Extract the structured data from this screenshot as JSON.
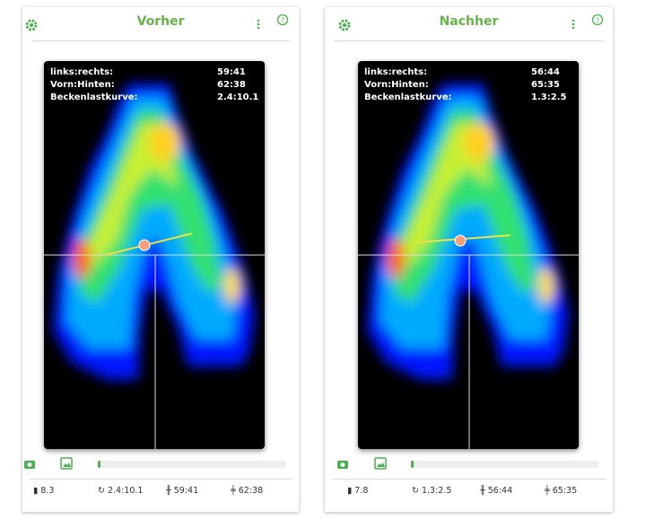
{
  "panels": [
    {
      "title": "Vorher",
      "stats": [
        {
          "label": "links:rechts:",
          "value": "59:41"
        },
        {
          "label": "Vorn:Hinten:",
          "value": "62:38"
        },
        {
          "label": "Beckenlastkurve:",
          "value": "2.4:10.1"
        }
      ],
      "footer": [
        "8.3",
        "2.4:10.1",
        "59:41",
        "62:38"
      ]
    },
    {
      "title": "Nachher",
      "stats": [
        {
          "label": "links:rechts:",
          "value": "56:44"
        },
        {
          "label": "Vorn:Hinten:",
          "value": "65:35"
        },
        {
          "label": "Beckenlastkurve:",
          "value": "1.3:2.5"
        }
      ],
      "footer": [
        "7.8",
        "1.3:2.5",
        "56:44",
        "65:35"
      ]
    }
  ]
}
